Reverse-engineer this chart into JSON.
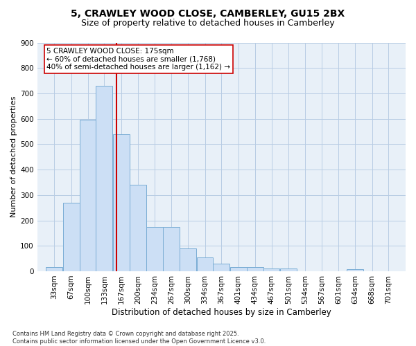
{
  "title_line1": "5, CRAWLEY WOOD CLOSE, CAMBERLEY, GU15 2BX",
  "title_line2": "Size of property relative to detached houses in Camberley",
  "xlabel": "Distribution of detached houses by size in Camberley",
  "ylabel": "Number of detached properties",
  "bar_color": "#ccdff5",
  "bar_edge_color": "#7aadd4",
  "annotation_line_color": "#cc0000",
  "annotation_box_color": "#cc0000",
  "annotation_text": "5 CRAWLEY WOOD CLOSE: 175sqm\n← 60% of detached houses are smaller (1,768)\n40% of semi-detached houses are larger (1,162) →",
  "property_size": 175,
  "categories": [
    "33sqm",
    "67sqm",
    "100sqm",
    "133sqm",
    "167sqm",
    "200sqm",
    "234sqm",
    "267sqm",
    "300sqm",
    "334sqm",
    "367sqm",
    "401sqm",
    "434sqm",
    "467sqm",
    "501sqm",
    "534sqm",
    "567sqm",
    "601sqm",
    "634sqm",
    "668sqm",
    "701sqm"
  ],
  "bin_left_edges": [
    33,
    67,
    100,
    133,
    167,
    200,
    234,
    267,
    300,
    334,
    367,
    401,
    434,
    467,
    501,
    534,
    567,
    601,
    634,
    668,
    701
  ],
  "bin_width": 34,
  "values": [
    15,
    270,
    595,
    730,
    540,
    340,
    175,
    175,
    90,
    55,
    30,
    17,
    17,
    10,
    10,
    0,
    0,
    0,
    8,
    0,
    0
  ],
  "ylim": [
    0,
    900
  ],
  "yticks": [
    0,
    100,
    200,
    300,
    400,
    500,
    600,
    700,
    800,
    900
  ],
  "bg_color": "#e8f0f8",
  "fig_bg_color": "#ffffff",
  "grid_color": "#b8cce4",
  "footnote": "Contains HM Land Registry data © Crown copyright and database right 2025.\nContains public sector information licensed under the Open Government Licence v3.0.",
  "title_fontsize": 10,
  "subtitle_fontsize": 9,
  "xlabel_fontsize": 8.5,
  "ylabel_fontsize": 8,
  "tick_fontsize": 7.5,
  "annot_fontsize": 7.5,
  "footnote_fontsize": 6
}
